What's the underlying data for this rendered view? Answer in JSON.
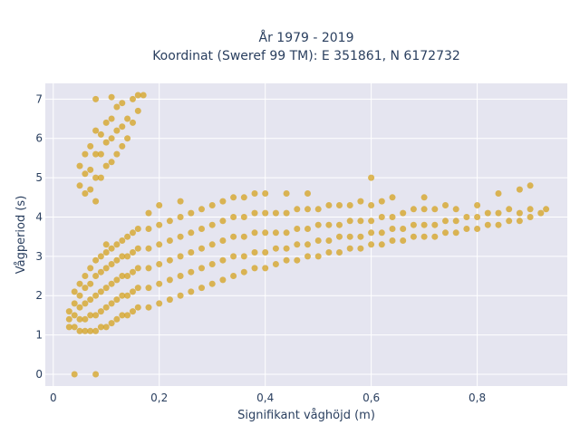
{
  "chart_data": {
    "type": "scatter",
    "title_line1": "År 1979 - 2019",
    "title_line2": "Koordinat (Sweref 99 TM): E 351861, N 6172732",
    "xlabel": "Signifikant våghöjd (m)",
    "ylabel": "Vågperiod (s)",
    "xlim": [
      -0.015,
      0.97
    ],
    "ylim": [
      -0.3,
      7.4
    ],
    "x_ticks": [
      0,
      0.2,
      0.4,
      0.6,
      0.8
    ],
    "x_tick_labels": [
      "0",
      "0,2",
      "0,4",
      "0,6",
      "0,8"
    ],
    "y_ticks": [
      0,
      1,
      2,
      3,
      4,
      5,
      6,
      7
    ],
    "y_tick_labels": [
      "0",
      "1",
      "2",
      "3",
      "4",
      "5",
      "6",
      "7"
    ],
    "grid": true,
    "colors": {
      "marker": "#d4a21f",
      "plot_bg": "#e5e5f0",
      "grid": "#ffffff",
      "text": "#2a3f5f"
    },
    "series": [
      {
        "points": [
          [
            0.04,
            0.0
          ],
          [
            0.08,
            0.0
          ],
          [
            0.03,
            1.2
          ],
          [
            0.03,
            1.4
          ],
          [
            0.03,
            1.6
          ],
          [
            0.04,
            1.2
          ],
          [
            0.04,
            1.5
          ],
          [
            0.04,
            1.8
          ],
          [
            0.04,
            2.1
          ],
          [
            0.05,
            1.1
          ],
          [
            0.05,
            1.4
          ],
          [
            0.05,
            1.7
          ],
          [
            0.05,
            2.0
          ],
          [
            0.05,
            2.3
          ],
          [
            0.06,
            1.1
          ],
          [
            0.06,
            1.4
          ],
          [
            0.06,
            1.8
          ],
          [
            0.06,
            2.2
          ],
          [
            0.06,
            2.5
          ],
          [
            0.07,
            1.1
          ],
          [
            0.07,
            1.5
          ],
          [
            0.07,
            1.9
          ],
          [
            0.07,
            2.3
          ],
          [
            0.07,
            2.7
          ],
          [
            0.08,
            1.1
          ],
          [
            0.08,
            1.5
          ],
          [
            0.08,
            2.0
          ],
          [
            0.08,
            2.5
          ],
          [
            0.08,
            2.9
          ],
          [
            0.09,
            1.2
          ],
          [
            0.09,
            1.6
          ],
          [
            0.09,
            2.1
          ],
          [
            0.09,
            2.6
          ],
          [
            0.09,
            3.0
          ],
          [
            0.1,
            1.2
          ],
          [
            0.1,
            1.7
          ],
          [
            0.1,
            2.2
          ],
          [
            0.1,
            2.7
          ],
          [
            0.1,
            3.1
          ],
          [
            0.1,
            3.3
          ],
          [
            0.11,
            1.3
          ],
          [
            0.11,
            1.8
          ],
          [
            0.11,
            2.3
          ],
          [
            0.11,
            2.8
          ],
          [
            0.11,
            3.2
          ],
          [
            0.12,
            1.4
          ],
          [
            0.12,
            1.9
          ],
          [
            0.12,
            2.4
          ],
          [
            0.12,
            2.9
          ],
          [
            0.12,
            3.3
          ],
          [
            0.13,
            1.5
          ],
          [
            0.13,
            2.0
          ],
          [
            0.13,
            2.5
          ],
          [
            0.13,
            3.0
          ],
          [
            0.13,
            3.4
          ],
          [
            0.14,
            1.5
          ],
          [
            0.14,
            2.0
          ],
          [
            0.14,
            2.5
          ],
          [
            0.14,
            3.0
          ],
          [
            0.14,
            3.5
          ],
          [
            0.15,
            1.6
          ],
          [
            0.15,
            2.1
          ],
          [
            0.15,
            2.6
          ],
          [
            0.15,
            3.1
          ],
          [
            0.15,
            3.6
          ],
          [
            0.16,
            1.7
          ],
          [
            0.16,
            2.2
          ],
          [
            0.16,
            2.7
          ],
          [
            0.16,
            3.2
          ],
          [
            0.16,
            3.7
          ],
          [
            0.18,
            1.7
          ],
          [
            0.18,
            2.2
          ],
          [
            0.18,
            2.7
          ],
          [
            0.18,
            3.2
          ],
          [
            0.18,
            3.7
          ],
          [
            0.18,
            4.1
          ],
          [
            0.2,
            1.8
          ],
          [
            0.2,
            2.3
          ],
          [
            0.2,
            2.8
          ],
          [
            0.2,
            3.3
          ],
          [
            0.2,
            3.8
          ],
          [
            0.2,
            4.3
          ],
          [
            0.22,
            1.9
          ],
          [
            0.22,
            2.4
          ],
          [
            0.22,
            2.9
          ],
          [
            0.22,
            3.4
          ],
          [
            0.22,
            3.9
          ],
          [
            0.24,
            2.0
          ],
          [
            0.24,
            2.5
          ],
          [
            0.24,
            3.0
          ],
          [
            0.24,
            3.5
          ],
          [
            0.24,
            4.0
          ],
          [
            0.24,
            4.4
          ],
          [
            0.26,
            2.1
          ],
          [
            0.26,
            2.6
          ],
          [
            0.26,
            3.1
          ],
          [
            0.26,
            3.6
          ],
          [
            0.26,
            4.1
          ],
          [
            0.28,
            2.2
          ],
          [
            0.28,
            2.7
          ],
          [
            0.28,
            3.2
          ],
          [
            0.28,
            3.7
          ],
          [
            0.28,
            4.2
          ],
          [
            0.3,
            2.3
          ],
          [
            0.3,
            2.8
          ],
          [
            0.3,
            3.3
          ],
          [
            0.3,
            3.8
          ],
          [
            0.3,
            4.3
          ],
          [
            0.32,
            2.4
          ],
          [
            0.32,
            2.9
          ],
          [
            0.32,
            3.4
          ],
          [
            0.32,
            3.9
          ],
          [
            0.32,
            4.4
          ],
          [
            0.34,
            2.5
          ],
          [
            0.34,
            3.0
          ],
          [
            0.34,
            3.5
          ],
          [
            0.34,
            4.0
          ],
          [
            0.34,
            4.5
          ],
          [
            0.36,
            2.6
          ],
          [
            0.36,
            3.0
          ],
          [
            0.36,
            3.5
          ],
          [
            0.36,
            4.0
          ],
          [
            0.36,
            4.5
          ],
          [
            0.38,
            2.7
          ],
          [
            0.38,
            3.1
          ],
          [
            0.38,
            3.6
          ],
          [
            0.38,
            4.1
          ],
          [
            0.38,
            4.6
          ],
          [
            0.4,
            2.7
          ],
          [
            0.4,
            3.1
          ],
          [
            0.4,
            3.6
          ],
          [
            0.4,
            4.1
          ],
          [
            0.4,
            4.6
          ],
          [
            0.42,
            2.8
          ],
          [
            0.42,
            3.2
          ],
          [
            0.42,
            3.6
          ],
          [
            0.42,
            4.1
          ],
          [
            0.44,
            2.9
          ],
          [
            0.44,
            3.2
          ],
          [
            0.44,
            3.6
          ],
          [
            0.44,
            4.1
          ],
          [
            0.44,
            4.6
          ],
          [
            0.46,
            2.9
          ],
          [
            0.46,
            3.3
          ],
          [
            0.46,
            3.7
          ],
          [
            0.46,
            4.2
          ],
          [
            0.48,
            3.0
          ],
          [
            0.48,
            3.3
          ],
          [
            0.48,
            3.7
          ],
          [
            0.48,
            4.2
          ],
          [
            0.48,
            4.6
          ],
          [
            0.5,
            3.0
          ],
          [
            0.5,
            3.4
          ],
          [
            0.5,
            3.8
          ],
          [
            0.5,
            4.2
          ],
          [
            0.52,
            3.1
          ],
          [
            0.52,
            3.4
          ],
          [
            0.52,
            3.8
          ],
          [
            0.52,
            4.3
          ],
          [
            0.54,
            3.1
          ],
          [
            0.54,
            3.5
          ],
          [
            0.54,
            3.8
          ],
          [
            0.54,
            4.3
          ],
          [
            0.56,
            3.2
          ],
          [
            0.56,
            3.5
          ],
          [
            0.56,
            3.9
          ],
          [
            0.56,
            4.3
          ],
          [
            0.58,
            3.2
          ],
          [
            0.58,
            3.5
          ],
          [
            0.58,
            3.9
          ],
          [
            0.58,
            4.4
          ],
          [
            0.6,
            3.3
          ],
          [
            0.6,
            3.6
          ],
          [
            0.6,
            3.9
          ],
          [
            0.6,
            4.3
          ],
          [
            0.6,
            5.0
          ],
          [
            0.62,
            3.3
          ],
          [
            0.62,
            3.6
          ],
          [
            0.62,
            4.0
          ],
          [
            0.62,
            4.4
          ],
          [
            0.64,
            3.4
          ],
          [
            0.64,
            3.7
          ],
          [
            0.64,
            4.0
          ],
          [
            0.64,
            4.5
          ],
          [
            0.66,
            3.4
          ],
          [
            0.66,
            3.7
          ],
          [
            0.66,
            4.1
          ],
          [
            0.68,
            3.5
          ],
          [
            0.68,
            3.8
          ],
          [
            0.68,
            4.2
          ],
          [
            0.7,
            3.5
          ],
          [
            0.7,
            3.8
          ],
          [
            0.7,
            4.2
          ],
          [
            0.7,
            4.5
          ],
          [
            0.72,
            3.5
          ],
          [
            0.72,
            3.8
          ],
          [
            0.72,
            4.2
          ],
          [
            0.74,
            3.6
          ],
          [
            0.74,
            3.9
          ],
          [
            0.74,
            4.3
          ],
          [
            0.76,
            3.6
          ],
          [
            0.76,
            3.9
          ],
          [
            0.76,
            4.2
          ],
          [
            0.78,
            3.7
          ],
          [
            0.78,
            4.0
          ],
          [
            0.8,
            3.7
          ],
          [
            0.8,
            4.0
          ],
          [
            0.8,
            4.3
          ],
          [
            0.82,
            3.8
          ],
          [
            0.82,
            4.1
          ],
          [
            0.84,
            3.8
          ],
          [
            0.84,
            4.1
          ],
          [
            0.84,
            4.6
          ],
          [
            0.86,
            3.9
          ],
          [
            0.86,
            4.2
          ],
          [
            0.88,
            3.9
          ],
          [
            0.88,
            4.1
          ],
          [
            0.88,
            4.7
          ],
          [
            0.9,
            4.0
          ],
          [
            0.9,
            4.2
          ],
          [
            0.9,
            4.8
          ],
          [
            0.92,
            4.1
          ],
          [
            0.93,
            4.2
          ],
          [
            0.05,
            4.8
          ],
          [
            0.05,
            5.3
          ],
          [
            0.06,
            4.6
          ],
          [
            0.06,
            5.1
          ],
          [
            0.06,
            5.6
          ],
          [
            0.07,
            4.7
          ],
          [
            0.07,
            5.2
          ],
          [
            0.07,
            5.8
          ],
          [
            0.08,
            4.4
          ],
          [
            0.08,
            5.0
          ],
          [
            0.08,
            5.6
          ],
          [
            0.08,
            6.2
          ],
          [
            0.09,
            5.0
          ],
          [
            0.09,
            5.6
          ],
          [
            0.09,
            6.1
          ],
          [
            0.1,
            5.3
          ],
          [
            0.1,
            5.9
          ],
          [
            0.1,
            6.4
          ],
          [
            0.11,
            5.4
          ],
          [
            0.11,
            6.0
          ],
          [
            0.11,
            6.5
          ],
          [
            0.12,
            5.6
          ],
          [
            0.12,
            6.2
          ],
          [
            0.12,
            6.8
          ],
          [
            0.13,
            5.8
          ],
          [
            0.13,
            6.3
          ],
          [
            0.13,
            6.9
          ],
          [
            0.14,
            6.0
          ],
          [
            0.14,
            6.5
          ],
          [
            0.15,
            6.4
          ],
          [
            0.15,
            7.0
          ],
          [
            0.16,
            6.7
          ],
          [
            0.16,
            7.1
          ],
          [
            0.17,
            7.1
          ],
          [
            0.08,
            7.0
          ],
          [
            0.11,
            7.05
          ]
        ]
      }
    ]
  }
}
